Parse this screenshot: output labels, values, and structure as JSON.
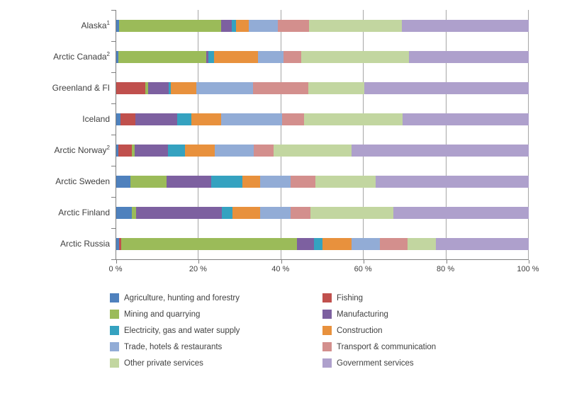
{
  "chart_data": {
    "type": "bar",
    "subtype": "horizontal-stacked-percent",
    "title": "",
    "xlabel": "",
    "ylabel": "",
    "xlim": [
      0,
      100
    ],
    "x_ticks": [
      "0 %",
      "20 %",
      "40 %",
      "60 %",
      "80 %",
      "100 %"
    ],
    "x_tick_values": [
      0,
      20,
      40,
      60,
      80,
      100
    ],
    "grid": "vertical",
    "legend_position": "bottom-two-columns",
    "categories": [
      {
        "label": "Alaska",
        "sup": "1"
      },
      {
        "label": "Arctic Canada",
        "sup": "2"
      },
      {
        "label": "Greenland & FI",
        "sup": ""
      },
      {
        "label": "Iceland",
        "sup": ""
      },
      {
        "label": "Arctic Norway",
        "sup": "2"
      },
      {
        "label": "Arctic Sweden",
        "sup": ""
      },
      {
        "label": "Arctic Finland",
        "sup": ""
      },
      {
        "label": "Arctic Russia",
        "sup": ""
      }
    ],
    "series": [
      {
        "name": "Agriculture, hunting and forestry",
        "color": "#4F81BD",
        "values": [
          0.7,
          0.5,
          0.0,
          1.0,
          0.6,
          3.4,
          3.8,
          0.7
        ]
      },
      {
        "name": "Fishing",
        "color": "#C0504D",
        "values": [
          0.0,
          0.0,
          7.0,
          3.6,
          3.2,
          0.0,
          0.0,
          0.5
        ]
      },
      {
        "name": "Mining and quarrying",
        "color": "#9BBB59",
        "values": [
          24.7,
          21.3,
          0.7,
          0.0,
          0.6,
          8.8,
          1.0,
          42.6
        ]
      },
      {
        "name": "Manufacturing",
        "color": "#7D60A0",
        "values": [
          2.6,
          0.5,
          5.0,
          10.1,
          8.1,
          10.8,
          20.8,
          4.1
        ]
      },
      {
        "name": "Electricity, gas and water supply",
        "color": "#35A2C0",
        "values": [
          1.0,
          1.4,
          0.5,
          3.6,
          4.2,
          7.6,
          2.6,
          2.1
        ]
      },
      {
        "name": "Construction",
        "color": "#E8913D",
        "values": [
          3.1,
          10.7,
          6.2,
          7.2,
          7.2,
          4.3,
          6.7,
          7.0
        ]
      },
      {
        "name": "Trade, hotels & restaurants",
        "color": "#92ACD6",
        "values": [
          7.0,
          6.2,
          13.7,
          14.8,
          9.5,
          7.4,
          7.4,
          6.9
        ]
      },
      {
        "name": "Transport & communication",
        "color": "#D38F8D",
        "values": [
          7.7,
          4.3,
          13.4,
          5.3,
          4.8,
          6.0,
          4.8,
          6.7
        ]
      },
      {
        "name": "Other private services",
        "color": "#C2D6A0",
        "values": [
          22.5,
          26.0,
          13.6,
          23.9,
          18.9,
          14.6,
          20.1,
          6.9
        ]
      },
      {
        "name": "Government services",
        "color": "#AEA0CC",
        "values": [
          30.7,
          29.1,
          39.9,
          30.5,
          42.9,
          37.1,
          32.8,
          22.5
        ]
      }
    ]
  }
}
